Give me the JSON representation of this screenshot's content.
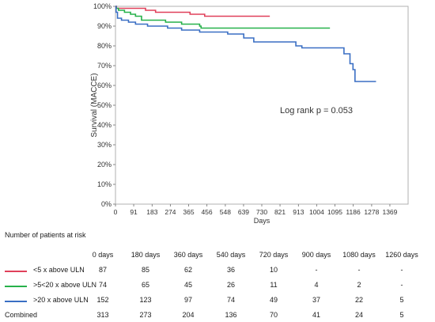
{
  "chart_data": {
    "type": "line",
    "subtype": "step",
    "title": "",
    "xlabel": "Days",
    "ylabel": "Survival (MACCE)",
    "xlim": [
      0,
      1460
    ],
    "ylim": [
      0,
      100
    ],
    "x_ticks": [
      "0",
      "91",
      "183",
      "274",
      "365",
      "456",
      "548",
      "639",
      "730",
      "821",
      "913",
      "1004",
      "1095",
      "1186",
      "1278",
      "1369"
    ],
    "x_tick_values": [
      0,
      91,
      183,
      274,
      365,
      456,
      548,
      639,
      730,
      821,
      913,
      1004,
      1095,
      1186,
      1278,
      1369
    ],
    "y_ticks": [
      "0%",
      "10%",
      "20%",
      "30%",
      "40%",
      "50%",
      "60%",
      "70%",
      "80%",
      "90%",
      "100%"
    ],
    "y_tick_values": [
      0,
      10,
      20,
      30,
      40,
      50,
      60,
      70,
      80,
      90,
      100
    ],
    "grid": false,
    "annotation": "Log rank p = 0.053",
    "series": [
      {
        "name": "<5 x above ULN",
        "color": "#e0405a",
        "points": [
          [
            0,
            100
          ],
          [
            5,
            99
          ],
          [
            85,
            99
          ],
          [
            150,
            98
          ],
          [
            200,
            97
          ],
          [
            370,
            97
          ],
          [
            372,
            96
          ],
          [
            440,
            96
          ],
          [
            445,
            95
          ],
          [
            770,
            95
          ]
        ]
      },
      {
        "name": ">5<20 x above ULN",
        "color": "#27b14a",
        "points": [
          [
            0,
            100
          ],
          [
            3,
            99
          ],
          [
            15,
            98
          ],
          [
            45,
            97
          ],
          [
            75,
            96
          ],
          [
            100,
            95
          ],
          [
            130,
            93
          ],
          [
            250,
            92
          ],
          [
            330,
            91
          ],
          [
            420,
            90
          ],
          [
            427,
            89
          ],
          [
            1070,
            89
          ]
        ]
      },
      {
        "name": ">20 x above ULN",
        "color": "#3a6fc4",
        "points": [
          [
            0,
            100
          ],
          [
            3,
            97
          ],
          [
            10,
            94
          ],
          [
            30,
            93
          ],
          [
            65,
            92
          ],
          [
            100,
            91
          ],
          [
            160,
            90
          ],
          [
            260,
            89
          ],
          [
            330,
            88
          ],
          [
            420,
            87
          ],
          [
            560,
            86
          ],
          [
            640,
            84
          ],
          [
            690,
            82
          ],
          [
            900,
            80
          ],
          [
            930,
            79
          ],
          [
            1140,
            76
          ],
          [
            1170,
            71
          ],
          [
            1185,
            68
          ],
          [
            1195,
            62
          ],
          [
            1300,
            62
          ]
        ]
      }
    ]
  },
  "risk_table": {
    "title": "Number of patients at risk",
    "headers": [
      "0 days",
      "180 days",
      "360 days",
      "540 days",
      "720 days",
      "900 days",
      "1080 days",
      "1260 days"
    ],
    "rows": [
      {
        "label": "<5 x above ULN",
        "color": "#e0405a",
        "values": [
          "87",
          "85",
          "62",
          "36",
          "10",
          "-",
          "-",
          "-"
        ]
      },
      {
        "label": ">5<20 x above ULN",
        "color": "#27b14a",
        "values": [
          "74",
          "65",
          "45",
          "26",
          "11",
          "4",
          "2",
          "-"
        ]
      },
      {
        "label": ">20 x above ULN",
        "color": "#3a6fc4",
        "values": [
          "152",
          "123",
          "97",
          "74",
          "49",
          "37",
          "22",
          "5"
        ]
      }
    ],
    "combined": {
      "label": "Combined",
      "values": [
        "313",
        "273",
        "204",
        "136",
        "70",
        "41",
        "24",
        "5"
      ]
    }
  }
}
